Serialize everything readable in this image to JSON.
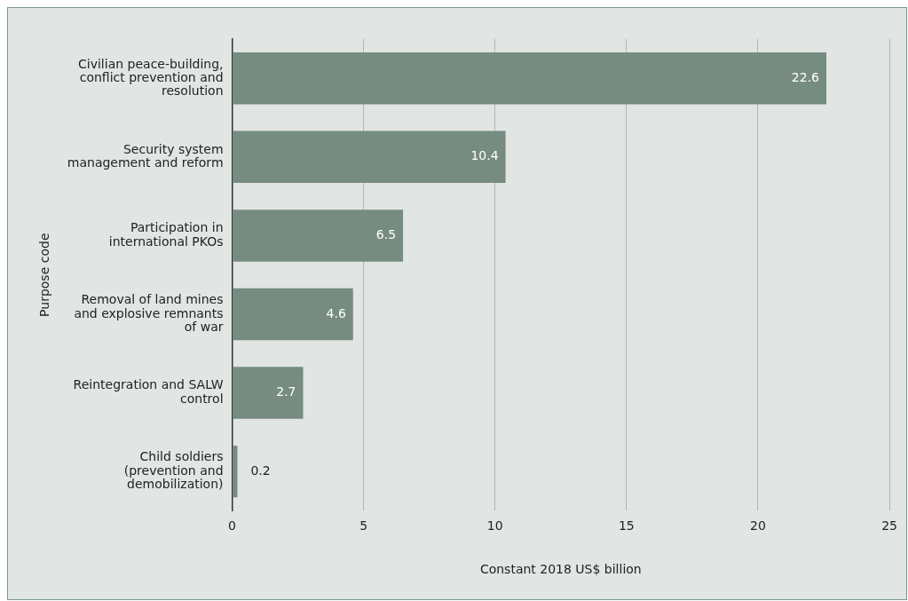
{
  "chart_data": {
    "type": "bar",
    "orientation": "horizontal",
    "xlabel": "Constant 2018 US$ billion",
    "ylabel": "Purpose code",
    "categories": [
      "Civilian peace-building, conflict prevention and resolution",
      "Security system management and reform",
      "Participation in international PKOs",
      "Removal of land mines and explosive remnants of war",
      "Reintegration and SALW control",
      "Child soldiers (prevention and demobilization)"
    ],
    "values": [
      22.6,
      10.4,
      6.5,
      4.6,
      2.7,
      0.2
    ],
    "color": "#768c80",
    "xlim": [
      0,
      25
    ],
    "xticks": [
      0,
      5,
      10,
      15,
      20,
      25
    ],
    "grid": "x",
    "legend": false,
    "data_labels": true
  }
}
